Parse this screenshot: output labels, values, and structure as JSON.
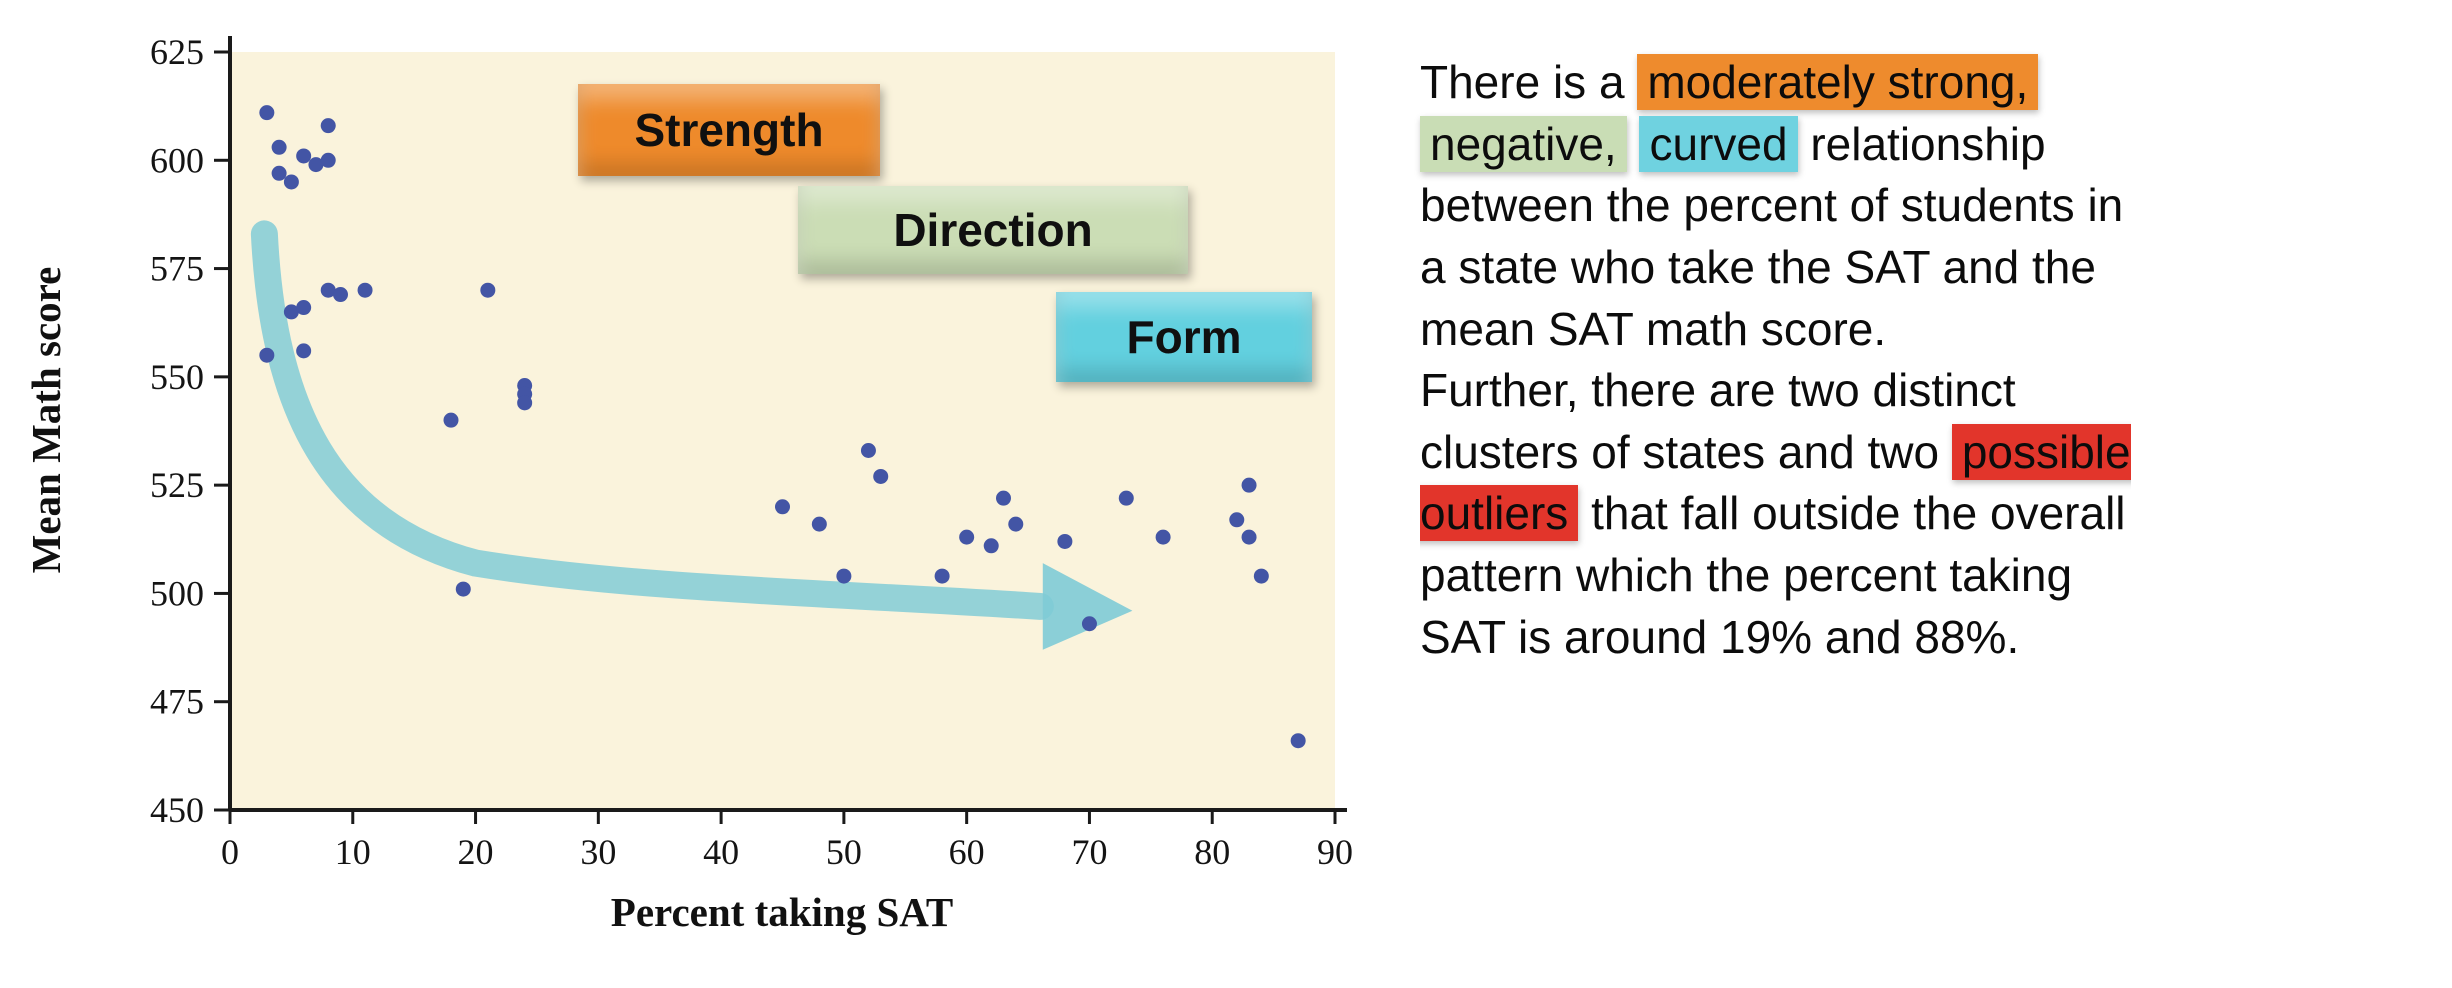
{
  "chart_data": {
    "type": "scatter",
    "title": "",
    "xlabel": "Percent taking SAT",
    "ylabel": "Mean Math score",
    "xlim": [
      0,
      90
    ],
    "ylim": [
      450,
      625
    ],
    "x_ticks": [
      0,
      10,
      20,
      30,
      40,
      50,
      60,
      70,
      80,
      90
    ],
    "y_ticks": [
      450,
      475,
      500,
      525,
      550,
      575,
      600,
      625
    ],
    "grid": false,
    "legend": "none",
    "plot_bg": "#faf3dc",
    "point_color": "#4355a5",
    "points": [
      [
        3,
        555
      ],
      [
        3,
        611
      ],
      [
        4,
        603
      ],
      [
        4,
        597
      ],
      [
        5,
        595
      ],
      [
        5,
        565
      ],
      [
        6,
        601
      ],
      [
        6,
        566
      ],
      [
        6,
        556
      ],
      [
        7,
        599
      ],
      [
        8,
        608
      ],
      [
        8,
        600
      ],
      [
        8,
        570
      ],
      [
        9,
        569
      ],
      [
        11,
        570
      ],
      [
        18,
        540
      ],
      [
        19,
        501
      ],
      [
        21,
        570
      ],
      [
        24,
        548
      ],
      [
        24,
        546
      ],
      [
        24,
        544
      ],
      [
        45,
        520
      ],
      [
        48,
        516
      ],
      [
        50,
        504
      ],
      [
        52,
        533
      ],
      [
        53,
        527
      ],
      [
        58,
        504
      ],
      [
        60,
        513
      ],
      [
        62,
        511
      ],
      [
        63,
        522
      ],
      [
        64,
        516
      ],
      [
        68,
        512
      ],
      [
        70,
        493
      ],
      [
        73,
        522
      ],
      [
        76,
        513
      ],
      [
        82,
        517
      ],
      [
        83,
        525
      ],
      [
        83,
        513
      ],
      [
        84,
        504
      ],
      [
        87,
        466
      ]
    ],
    "trend_arrow": {
      "description": "curved arrow from upper-left cluster down to lower-right, showing negative curved trend",
      "start": [
        2.8,
        583
      ],
      "end": [
        73,
        496
      ],
      "color": "#7ecbd6"
    }
  },
  "chart_labels": {
    "strength": {
      "label": "Strength",
      "color": "#ee8a2b"
    },
    "direction": {
      "label": "Direction",
      "color": "#cbddb5"
    },
    "form": {
      "label": "Form",
      "color": "#62d0df"
    }
  },
  "analysis": {
    "highlight_colors": {
      "orange": "#ee8b2d",
      "green": "#c9ddb5",
      "cyan": "#6fd2e0",
      "red": "#e2352b"
    },
    "paragraphs": [
      {
        "segments": [
          {
            "text": "There is a ",
            "highlight": null
          },
          {
            "text": "moderately strong,",
            "highlight": "orange"
          },
          {
            "text": "\n",
            "highlight": null
          },
          {
            "text": "negative,",
            "highlight": "green"
          },
          {
            "text": " ",
            "highlight": null
          },
          {
            "text": "curved",
            "highlight": "cyan"
          },
          {
            "text": " relationship\nbetween the percent of students in\na state who take the SAT and the\nmean SAT math score.",
            "highlight": null
          }
        ]
      },
      {
        "segments": [
          {
            "text": "Further, there are two distinct\nclusters of states and two ",
            "highlight": null
          },
          {
            "text": "possible\noutliers",
            "highlight": "red"
          },
          {
            "text": " that fall outside the overall\npattern which the percent taking\nSAT is around 19% and 88%.",
            "highlight": null
          }
        ]
      }
    ]
  }
}
